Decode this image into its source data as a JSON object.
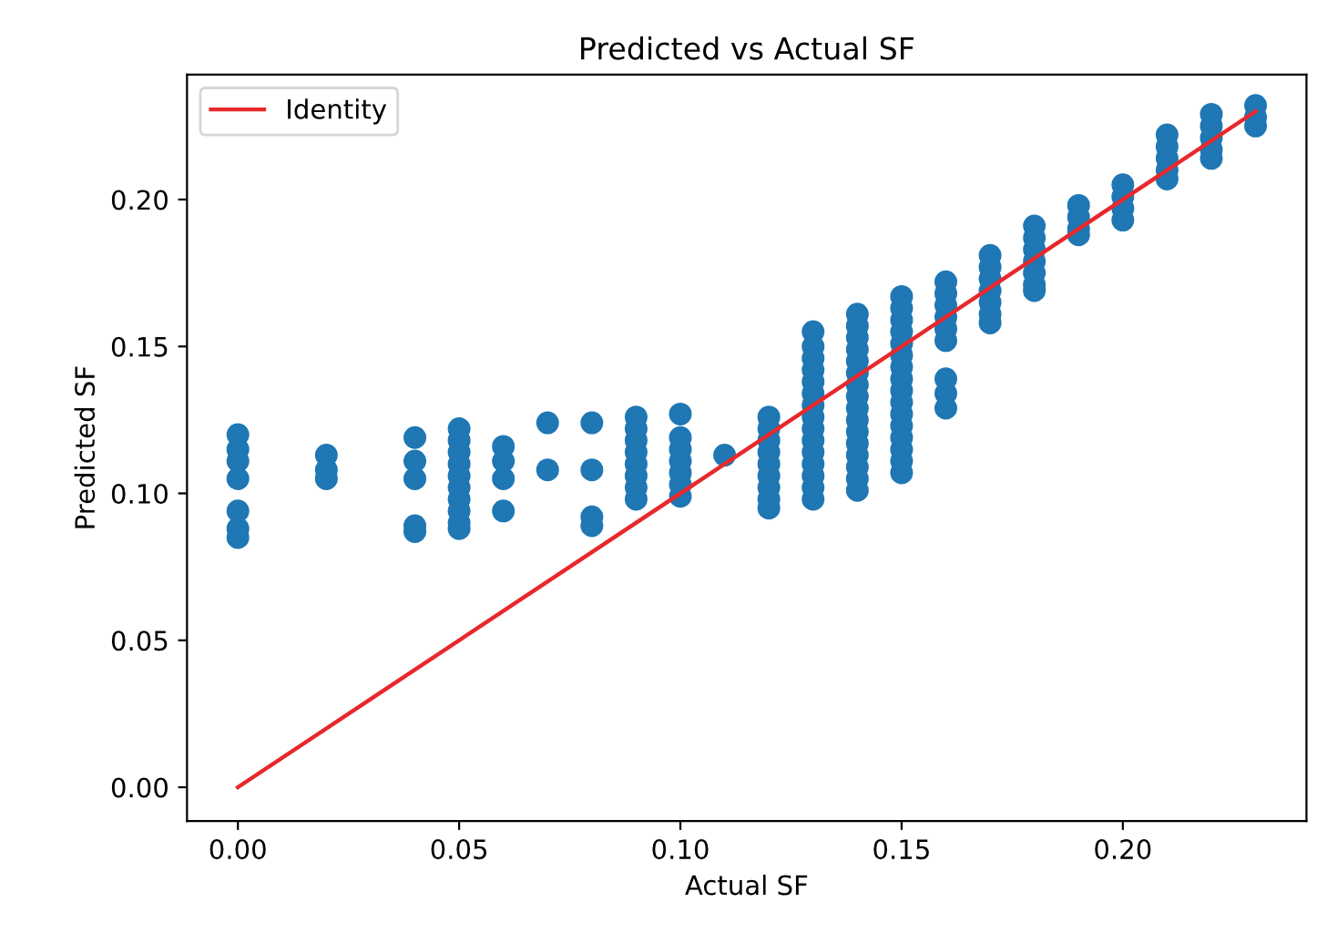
{
  "chart_data": {
    "type": "scatter",
    "title": "Predicted vs Actual SF",
    "xlabel": "Actual SF",
    "ylabel": "Predicted SF",
    "xlim": [
      -0.0115,
      0.2415
    ],
    "ylim": [
      -0.0115,
      0.2425
    ],
    "xticks": [
      {
        "value": 0,
        "label": "0.00"
      },
      {
        "value": 0.05,
        "label": "0.05"
      },
      {
        "value": 0.1,
        "label": "0.10"
      },
      {
        "value": 0.15,
        "label": "0.15"
      },
      {
        "value": 0.2,
        "label": "0.20"
      }
    ],
    "yticks": [
      {
        "value": 0,
        "label": "0.00"
      },
      {
        "value": 0.05,
        "label": "0.05"
      },
      {
        "value": 0.1,
        "label": "0.10"
      },
      {
        "value": 0.15,
        "label": "0.15"
      },
      {
        "value": 0.2,
        "label": "0.20"
      }
    ],
    "grid": false,
    "legend": "top left",
    "marker": "circle",
    "series": [
      {
        "color": "#1f77b4",
        "x": [
          0,
          0,
          0,
          0,
          0,
          0,
          0,
          0.02,
          0.02,
          0.02,
          0.04,
          0.04,
          0.04,
          0.04,
          0.04,
          0.05,
          0.05,
          0.05,
          0.05,
          0.05,
          0.05,
          0.05,
          0.05,
          0.05,
          0.05,
          0.06,
          0.06,
          0.06,
          0.06,
          0.07,
          0.07,
          0.08,
          0.08,
          0.08,
          0.08,
          0.09,
          0.09,
          0.09,
          0.09,
          0.09,
          0.09,
          0.09,
          0.09,
          0.1,
          0.1,
          0.1,
          0.1,
          0.1,
          0.1,
          0.1,
          0.11,
          0.12,
          0.12,
          0.12,
          0.12,
          0.12,
          0.12,
          0.12,
          0.12,
          0.12,
          0.13,
          0.13,
          0.13,
          0.13,
          0.13,
          0.13,
          0.13,
          0.13,
          0.13,
          0.13,
          0.13,
          0.13,
          0.13,
          0.13,
          0.13,
          0.14,
          0.14,
          0.14,
          0.14,
          0.14,
          0.14,
          0.14,
          0.14,
          0.14,
          0.14,
          0.14,
          0.14,
          0.14,
          0.14,
          0.14,
          0.14,
          0.15,
          0.15,
          0.15,
          0.15,
          0.15,
          0.15,
          0.15,
          0.15,
          0.15,
          0.15,
          0.15,
          0.15,
          0.15,
          0.15,
          0.15,
          0.15,
          0.16,
          0.16,
          0.16,
          0.16,
          0.16,
          0.16,
          0.16,
          0.16,
          0.16,
          0.17,
          0.17,
          0.17,
          0.17,
          0.17,
          0.17,
          0.17,
          0.18,
          0.18,
          0.18,
          0.18,
          0.18,
          0.18,
          0.18,
          0.19,
          0.19,
          0.19,
          0.19,
          0.2,
          0.2,
          0.2,
          0.2,
          0.21,
          0.21,
          0.21,
          0.21,
          0.21,
          0.22,
          0.22,
          0.22,
          0.22,
          0.22,
          0.23,
          0.23,
          0.23
        ],
        "values": [
          0.12,
          0.115,
          0.111,
          0.105,
          0.094,
          0.088,
          0.085,
          0.113,
          0.108,
          0.105,
          0.119,
          0.111,
          0.105,
          0.089,
          0.087,
          0.122,
          0.118,
          0.114,
          0.11,
          0.106,
          0.102,
          0.098,
          0.094,
          0.09,
          0.088,
          0.116,
          0.111,
          0.105,
          0.094,
          0.124,
          0.108,
          0.124,
          0.108,
          0.092,
          0.089,
          0.126,
          0.122,
          0.118,
          0.114,
          0.11,
          0.106,
          0.102,
          0.098,
          0.127,
          0.119,
          0.115,
          0.111,
          0.107,
          0.103,
          0.099,
          0.113,
          0.126,
          0.122,
          0.118,
          0.114,
          0.11,
          0.106,
          0.102,
          0.098,
          0.095,
          0.155,
          0.15,
          0.146,
          0.142,
          0.138,
          0.134,
          0.13,
          0.126,
          0.122,
          0.118,
          0.114,
          0.11,
          0.106,
          0.102,
          0.098,
          0.161,
          0.157,
          0.153,
          0.149,
          0.145,
          0.141,
          0.137,
          0.133,
          0.129,
          0.125,
          0.121,
          0.117,
          0.113,
          0.109,
          0.105,
          0.101,
          0.167,
          0.163,
          0.159,
          0.155,
          0.151,
          0.147,
          0.143,
          0.139,
          0.135,
          0.131,
          0.127,
          0.123,
          0.119,
          0.115,
          0.111,
          0.107,
          0.172,
          0.168,
          0.164,
          0.16,
          0.156,
          0.152,
          0.139,
          0.134,
          0.129,
          0.181,
          0.177,
          0.173,
          0.169,
          0.165,
          0.161,
          0.158,
          0.191,
          0.187,
          0.183,
          0.179,
          0.175,
          0.171,
          0.169,
          0.198,
          0.194,
          0.19,
          0.188,
          0.205,
          0.201,
          0.197,
          0.193,
          0.222,
          0.218,
          0.214,
          0.21,
          0.207,
          0.229,
          0.225,
          0.221,
          0.217,
          0.214,
          0.232,
          0.228,
          0.225
        ]
      },
      {
        "type": "line",
        "name": "Identity",
        "color": "#e8282b",
        "marker": "none",
        "x": [
          0,
          0.23
        ],
        "values": [
          0,
          0.23
        ]
      }
    ]
  }
}
